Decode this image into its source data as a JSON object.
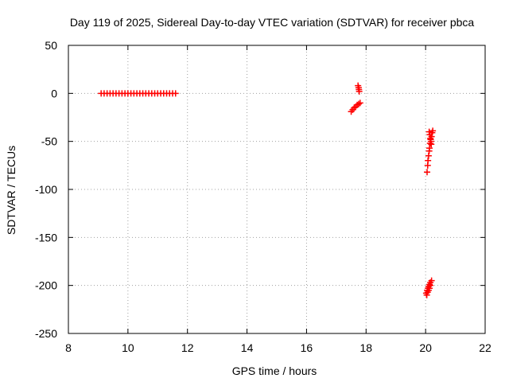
{
  "chart_data": {
    "type": "scatter",
    "title": "Day 119 of 2025, Sidereal Day-to-day VTEC variation (SDTVAR) for receiver pbca",
    "xlabel": "GPS time / hours",
    "ylabel": "SDTVAR / TECUs",
    "xlim": [
      8,
      22
    ],
    "ylim": [
      -250,
      50
    ],
    "xticks": [
      8,
      10,
      12,
      14,
      16,
      18,
      20,
      22
    ],
    "yticks": [
      -250,
      -200,
      -150,
      -100,
      -50,
      0,
      50
    ],
    "x_tick_labels": [
      "8",
      "10",
      "12",
      "14",
      "16",
      "18",
      "20",
      "22"
    ],
    "y_tick_labels": [
      "-250",
      "-200",
      "-150",
      "-100",
      "-50",
      "0",
      "50"
    ],
    "grid": true,
    "legend": "none",
    "marker": "plus",
    "marker_color": "#ff0000",
    "series": [
      {
        "points": [
          [
            9.1,
            0
          ],
          [
            9.2,
            0
          ],
          [
            9.3,
            0
          ],
          [
            9.4,
            0
          ],
          [
            9.5,
            0
          ],
          [
            9.6,
            0
          ],
          [
            9.7,
            0
          ],
          [
            9.8,
            0
          ],
          [
            9.9,
            0
          ],
          [
            10.0,
            0
          ],
          [
            10.1,
            0
          ],
          [
            10.2,
            0
          ],
          [
            10.3,
            0
          ],
          [
            10.4,
            0
          ],
          [
            10.5,
            0
          ],
          [
            10.6,
            0
          ],
          [
            10.7,
            0
          ],
          [
            10.8,
            0
          ],
          [
            10.9,
            0
          ],
          [
            11.0,
            0
          ],
          [
            11.1,
            0
          ],
          [
            11.2,
            0
          ],
          [
            11.3,
            0
          ],
          [
            11.4,
            0
          ],
          [
            11.5,
            0
          ],
          [
            11.6,
            0
          ],
          [
            17.73,
            8
          ],
          [
            17.75,
            6
          ],
          [
            17.76,
            4
          ],
          [
            17.77,
            2
          ],
          [
            17.5,
            -19
          ],
          [
            17.55,
            -17
          ],
          [
            17.6,
            -15
          ],
          [
            17.65,
            -14
          ],
          [
            17.7,
            -12
          ],
          [
            17.75,
            -11
          ],
          [
            17.8,
            -10
          ],
          [
            20.05,
            -82
          ],
          [
            20.07,
            -75
          ],
          [
            20.08,
            -70
          ],
          [
            20.1,
            -65
          ],
          [
            20.12,
            -60
          ],
          [
            20.13,
            -57
          ],
          [
            20.15,
            -52
          ],
          [
            20.17,
            -48
          ],
          [
            20.2,
            -45
          ],
          [
            20.22,
            -41
          ],
          [
            20.24,
            -39
          ],
          [
            20.12,
            -40
          ],
          [
            20.14,
            -43
          ],
          [
            20.16,
            -47
          ],
          [
            20.18,
            -50
          ],
          [
            20.19,
            -53
          ],
          [
            20.02,
            -208
          ],
          [
            20.05,
            -205
          ],
          [
            20.08,
            -203
          ],
          [
            20.1,
            -201
          ],
          [
            20.13,
            -199
          ],
          [
            20.16,
            -197
          ],
          [
            20.2,
            -195
          ],
          [
            20.04,
            -210
          ],
          [
            20.07,
            -207
          ],
          [
            20.1,
            -205
          ],
          [
            20.13,
            -203
          ],
          [
            20.16,
            -200
          ]
        ]
      }
    ]
  }
}
